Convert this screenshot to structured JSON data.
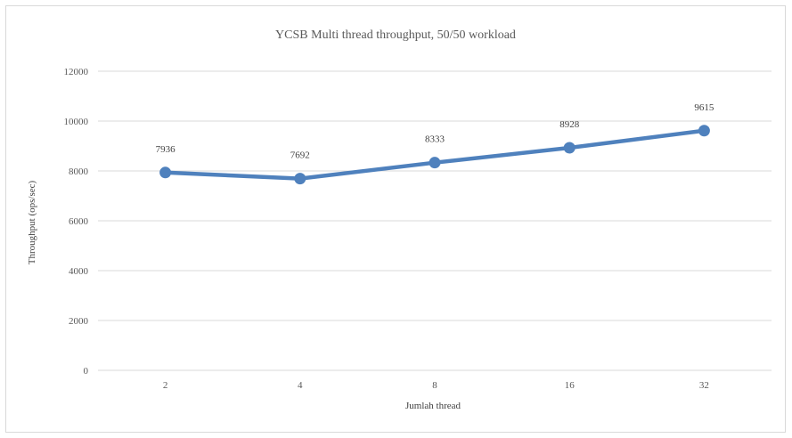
{
  "chart_data": {
    "type": "line",
    "title": "YCSB Multi thread throughput, 50/50 workload",
    "xlabel": "Jumlah thread",
    "ylabel": "Throughput (ops/sec)",
    "categories": [
      "2",
      "4",
      "8",
      "16",
      "32"
    ],
    "series": [
      {
        "values": [
          7936,
          7692,
          8333,
          8928,
          9615
        ],
        "color": "#4f81bd"
      }
    ],
    "ylim": [
      0,
      12000
    ],
    "yticks": [
      "0",
      "2000",
      "4000",
      "6000",
      "8000",
      "10000",
      "12000"
    ],
    "data_labels": [
      "7936",
      "7692",
      "8333",
      "8928",
      "9615"
    ],
    "grid": true,
    "legend": "none",
    "marker": "circle"
  }
}
